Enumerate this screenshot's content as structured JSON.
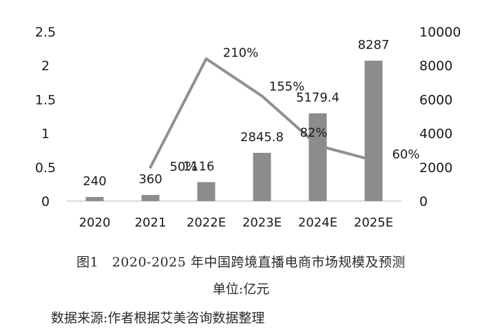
{
  "chart_data": {
    "type": "bar",
    "categories": [
      "2020",
      "2021",
      "2022E",
      "2023E",
      "2024E",
      "2025E"
    ],
    "series": [
      {
        "name": "",
        "type": "bar",
        "axis": "right",
        "values": [
          240,
          360,
          1116,
          2845.8,
          5179.4,
          8287
        ],
        "labels": [
          "240",
          "360",
          "1116",
          "2845.8",
          "5179.4",
          "8287"
        ]
      },
      {
        "name": "",
        "type": "line",
        "axis": "left",
        "values": [
          null,
          0.5,
          2.1,
          1.55,
          0.82,
          0.6
        ],
        "labels": [
          "",
          "50%",
          "210%",
          "155%",
          "82%",
          "60%"
        ]
      }
    ],
    "left_axis": {
      "min": 0,
      "max": 2.5,
      "ticks": [
        "0",
        "0.5",
        "1",
        "1.5",
        "2",
        "2.5"
      ]
    },
    "right_axis": {
      "min": 0,
      "max": 10000,
      "ticks": [
        "0",
        "2000",
        "4000",
        "6000",
        "8000",
        "10000"
      ]
    },
    "grid": false,
    "colors": {
      "bar": "#8c8c8c",
      "line": "#8f8f8f",
      "axis": "#bfbfbf"
    }
  },
  "caption": {
    "title": "图1　2020-2025 年中国跨境直播电商市场规模及预测",
    "unit": "单位:亿元",
    "source": "数据来源:作者根据艾美咨询数据整理"
  }
}
